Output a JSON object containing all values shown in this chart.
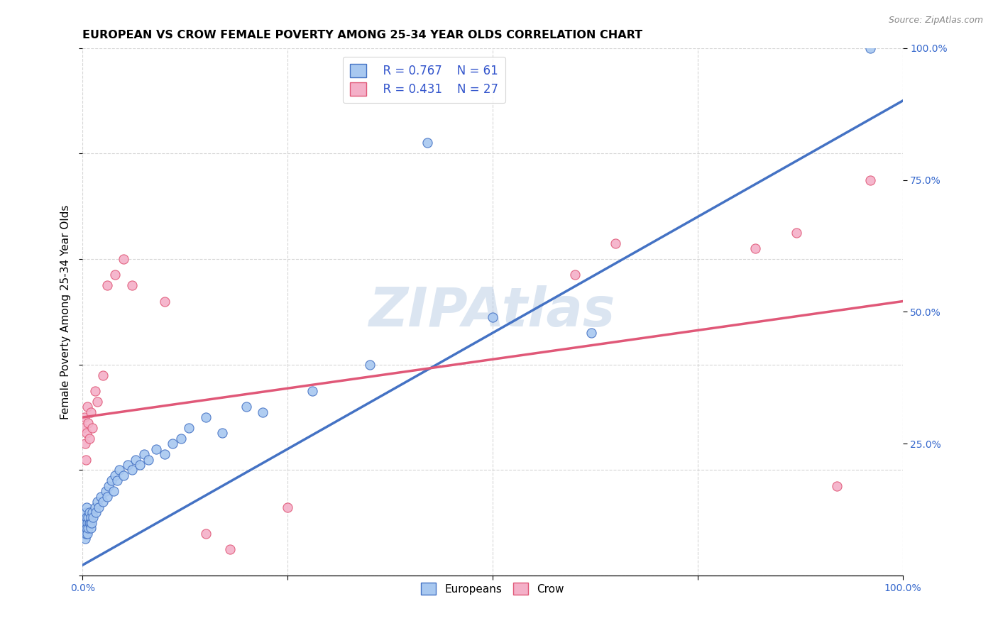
{
  "title": "EUROPEAN VS CROW FEMALE POVERTY AMONG 25-34 YEAR OLDS CORRELATION CHART",
  "source": "Source: ZipAtlas.com",
  "ylabel": "Female Poverty Among 25-34 Year Olds",
  "xlim": [
    0,
    1.0
  ],
  "ylim": [
    0,
    1.0
  ],
  "xticks": [
    0.0,
    0.25,
    0.5,
    0.75,
    1.0
  ],
  "xticklabels": [
    "0.0%",
    "",
    "",
    "",
    "100.0%"
  ],
  "yticks": [
    0.25,
    0.5,
    0.75,
    1.0
  ],
  "yticklabels": [
    "25.0%",
    "50.0%",
    "75.0%",
    "100.0%"
  ],
  "european_color": "#a8c8f0",
  "crow_color": "#f4b0c8",
  "trendline_european_color": "#4472c4",
  "trendline_crow_color": "#e05878",
  "watermark": "ZIPAtlas",
  "legend_r_european": "R = 0.767",
  "legend_n_european": "N = 61",
  "legend_r_crow": "R = 0.431",
  "legend_n_crow": "N = 27",
  "eu_trendline": [
    0.0,
    0.02,
    1.0,
    0.9
  ],
  "crow_trendline": [
    0.0,
    0.3,
    1.0,
    0.52
  ],
  "european_scatter": [
    [
      0.001,
      0.08
    ],
    [
      0.002,
      0.09
    ],
    [
      0.002,
      0.1
    ],
    [
      0.002,
      0.11
    ],
    [
      0.003,
      0.07
    ],
    [
      0.003,
      0.09
    ],
    [
      0.003,
      0.1
    ],
    [
      0.004,
      0.08
    ],
    [
      0.004,
      0.1
    ],
    [
      0.004,
      0.12
    ],
    [
      0.005,
      0.09
    ],
    [
      0.005,
      0.11
    ],
    [
      0.005,
      0.13
    ],
    [
      0.006,
      0.08
    ],
    [
      0.006,
      0.1
    ],
    [
      0.007,
      0.09
    ],
    [
      0.007,
      0.11
    ],
    [
      0.008,
      0.1
    ],
    [
      0.008,
      0.12
    ],
    [
      0.009,
      0.1
    ],
    [
      0.01,
      0.09
    ],
    [
      0.01,
      0.11
    ],
    [
      0.011,
      0.1
    ],
    [
      0.012,
      0.12
    ],
    [
      0.013,
      0.11
    ],
    [
      0.015,
      0.13
    ],
    [
      0.016,
      0.12
    ],
    [
      0.018,
      0.14
    ],
    [
      0.02,
      0.13
    ],
    [
      0.022,
      0.15
    ],
    [
      0.025,
      0.14
    ],
    [
      0.028,
      0.16
    ],
    [
      0.03,
      0.15
    ],
    [
      0.032,
      0.17
    ],
    [
      0.035,
      0.18
    ],
    [
      0.038,
      0.16
    ],
    [
      0.04,
      0.19
    ],
    [
      0.042,
      0.18
    ],
    [
      0.045,
      0.2
    ],
    [
      0.05,
      0.19
    ],
    [
      0.055,
      0.21
    ],
    [
      0.06,
      0.2
    ],
    [
      0.065,
      0.22
    ],
    [
      0.07,
      0.21
    ],
    [
      0.075,
      0.23
    ],
    [
      0.08,
      0.22
    ],
    [
      0.09,
      0.24
    ],
    [
      0.1,
      0.23
    ],
    [
      0.11,
      0.25
    ],
    [
      0.12,
      0.26
    ],
    [
      0.13,
      0.28
    ],
    [
      0.15,
      0.3
    ],
    [
      0.17,
      0.27
    ],
    [
      0.2,
      0.32
    ],
    [
      0.22,
      0.31
    ],
    [
      0.28,
      0.35
    ],
    [
      0.35,
      0.4
    ],
    [
      0.42,
      0.82
    ],
    [
      0.5,
      0.49
    ],
    [
      0.62,
      0.46
    ],
    [
      0.96,
      1.0
    ]
  ],
  "crow_scatter": [
    [
      0.001,
      0.28
    ],
    [
      0.002,
      0.3
    ],
    [
      0.003,
      0.25
    ],
    [
      0.004,
      0.22
    ],
    [
      0.005,
      0.27
    ],
    [
      0.006,
      0.32
    ],
    [
      0.007,
      0.29
    ],
    [
      0.008,
      0.26
    ],
    [
      0.01,
      0.31
    ],
    [
      0.012,
      0.28
    ],
    [
      0.015,
      0.35
    ],
    [
      0.018,
      0.33
    ],
    [
      0.025,
      0.38
    ],
    [
      0.03,
      0.55
    ],
    [
      0.04,
      0.57
    ],
    [
      0.05,
      0.6
    ],
    [
      0.06,
      0.55
    ],
    [
      0.1,
      0.52
    ],
    [
      0.15,
      0.08
    ],
    [
      0.18,
      0.05
    ],
    [
      0.25,
      0.13
    ],
    [
      0.6,
      0.57
    ],
    [
      0.65,
      0.63
    ],
    [
      0.82,
      0.62
    ],
    [
      0.87,
      0.65
    ],
    [
      0.92,
      0.17
    ],
    [
      0.96,
      0.75
    ]
  ],
  "background_color": "#ffffff",
  "grid_color": "#cccccc",
  "title_fontsize": 11.5,
  "axis_label_fontsize": 11,
  "tick_fontsize": 10,
  "legend_fontsize": 12
}
